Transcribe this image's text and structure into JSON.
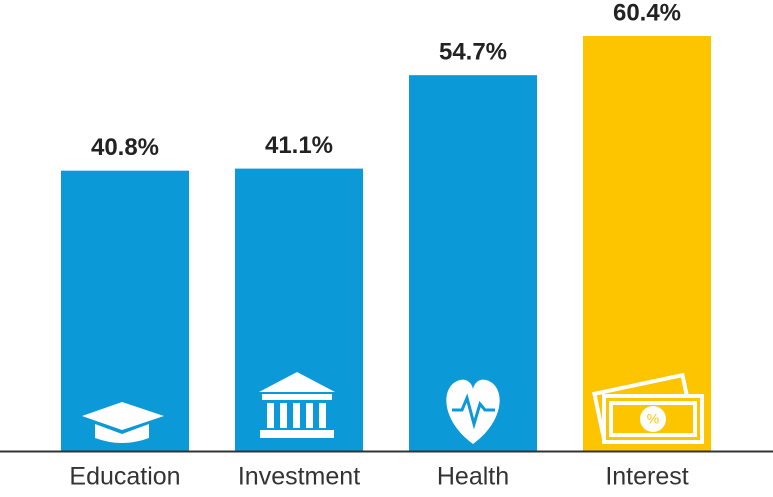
{
  "chart_data": {
    "type": "bar",
    "categories": [
      "Education",
      "Investment",
      "Health",
      "Interest"
    ],
    "values": [
      40.8,
      41.1,
      54.7,
      60.4
    ],
    "value_labels": [
      "40.8%",
      "41.1%",
      "54.7%",
      "60.4%"
    ],
    "colors": [
      "#0b99d8",
      "#0b99d8",
      "#0b99d8",
      "#fdc400"
    ]
  }
}
